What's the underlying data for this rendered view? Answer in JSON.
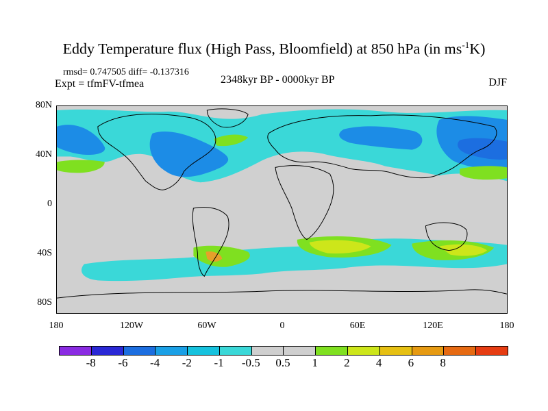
{
  "title": {
    "main": "Eddy Temperature flux (High Pass, Bloomfield) at 850 hPa (in ms",
    "sup": "-1",
    "end": "K)"
  },
  "stats": "rmsd= 0.747505 diff= -0.137316",
  "experiment": "Expt = tfmFV-tfmea",
  "period": "2348kyr BP - 0000kyr BP",
  "season": "DJF",
  "y_ticks": [
    "80N",
    "40N",
    "0",
    "40S",
    "80S"
  ],
  "x_ticks": [
    "180",
    "120W",
    "60W",
    "0",
    "60E",
    "120E",
    "180"
  ],
  "colorbar": {
    "colors": [
      "#8a2be2",
      "#2a28d6",
      "#1c6ee0",
      "#1aa0e6",
      "#16c2de",
      "#3ad8d8",
      "#cfcfcf",
      "#cfcfcf",
      "#7fe020",
      "#cde61a",
      "#e6c012",
      "#e69a12",
      "#e66a12",
      "#e63c12"
    ],
    "labels": [
      "-8",
      "-6",
      "-4",
      "-2",
      "-1",
      "-0.5",
      "0.5",
      "1",
      "2",
      "4",
      "6",
      "8"
    ]
  },
  "map_colors": {
    "land_ocean": "#d0d0d0",
    "cyan": "#3ad8d8",
    "blue": "#1c8ce6",
    "deep_blue": "#1c6ee0",
    "green": "#7fe020",
    "yellow": "#cde61a",
    "orange": "#e6a02a"
  }
}
